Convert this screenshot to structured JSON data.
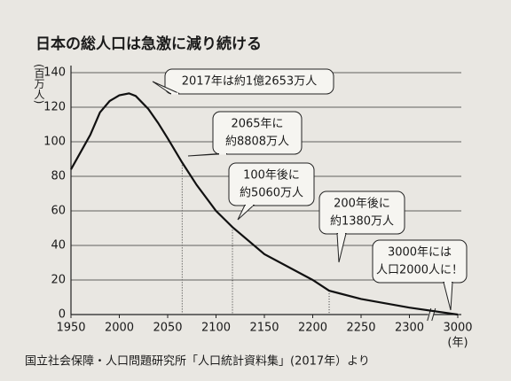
{
  "chart_data": {
    "type": "line",
    "title": "日本の総人口は急激に減り続ける",
    "y_label": "(百万人)",
    "x_label": "(年)",
    "source": "国立社会保障・人口問題研究所「人口統計資料集」(2017年）より",
    "x": [
      1950,
      1960,
      1970,
      1980,
      1990,
      2000,
      2010,
      2017,
      2030,
      2040,
      2050,
      2065,
      2080,
      2100,
      2117,
      2150,
      2200,
      2217,
      2250,
      2300,
      3000
    ],
    "series": [
      {
        "name": "総人口",
        "color": "#111111",
        "values": [
          84,
          94,
          104,
          117,
          123.6,
          126.9,
          128,
          126.5,
          119,
          111,
          102,
          88,
          75,
          60,
          50.6,
          35,
          20,
          13.8,
          9,
          4,
          0.002
        ]
      }
    ],
    "xticks": [
      1950,
      2000,
      2050,
      2100,
      2150,
      2200,
      2250,
      2300,
      3000
    ],
    "ylim": [
      0,
      140
    ],
    "yticks": [
      0,
      20,
      40,
      60,
      80,
      100,
      120,
      140
    ],
    "grid": true,
    "axis_break": true,
    "annotations": [
      {
        "x": 2017,
        "lines": [
          "2017年は約1億2653万人"
        ]
      },
      {
        "x": 2065,
        "lines": [
          "2065年に",
          "約8808万人"
        ]
      },
      {
        "x": 2117,
        "lines": [
          "100年後に",
          "約5060万人"
        ]
      },
      {
        "x": 2217,
        "lines": [
          "200年後に",
          "約1380万人"
        ]
      },
      {
        "x": 3000,
        "lines": [
          "3000年には",
          "人口2000人に！"
        ]
      }
    ]
  }
}
